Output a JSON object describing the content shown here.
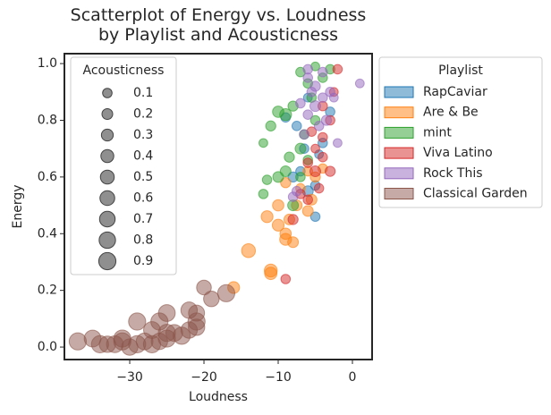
{
  "chart_data": {
    "type": "scatter",
    "title": "Scatterplot of Energy vs. Loudness\nby Playlist and Acousticness",
    "x_label": "Loudness",
    "y_label": "Energy",
    "xlim": [
      -38.8,
      2.65
    ],
    "ylim": [
      -0.044,
      1.035
    ],
    "xticks": [
      {
        "value": -30,
        "label": "−30"
      },
      {
        "value": -20,
        "label": "−20"
      },
      {
        "value": -10,
        "label": "−10"
      },
      0
    ],
    "yticks": [
      {
        "value": 0,
        "label": "0.0"
      },
      0.2,
      0.4,
      0.6,
      0.8,
      {
        "value": 1,
        "label": "1.0"
      }
    ],
    "legend_title": "Playlist",
    "size_legend": {
      "title": "Acousticness",
      "values": [
        0.1,
        0.2,
        0.3,
        0.4,
        0.5,
        0.6,
        0.7,
        0.8,
        0.9
      ]
    },
    "series": [
      {
        "name": "RapCaviar",
        "color": "#1f77b4",
        "x": [
          -9,
          -7,
          -6,
          -5,
          -4.5,
          -7.5,
          -5,
          -6,
          -4,
          -8,
          -3,
          -6.5
        ],
        "y": [
          0.81,
          0.62,
          0.55,
          0.57,
          0.68,
          0.78,
          0.46,
          0.88,
          0.72,
          0.6,
          0.83,
          0.7
        ],
        "size": [
          0.1,
          0.1,
          0.2,
          0.1,
          0.05,
          0.1,
          0.1,
          0.05,
          0.1,
          0.15,
          0.1,
          0.1
        ]
      },
      {
        "name": "Are & Be",
        "color": "#ff7f0e",
        "x": [
          -16,
          -14,
          -11,
          -11,
          -10,
          -11.5,
          -9,
          -8,
          -7.5,
          -6,
          -10,
          -8.5,
          -6,
          -5,
          -9,
          -7,
          -4,
          -5.5,
          -9
        ],
        "y": [
          0.21,
          0.34,
          0.27,
          0.26,
          0.43,
          0.46,
          0.4,
          0.37,
          0.5,
          0.48,
          0.5,
          0.45,
          0.62,
          0.6,
          0.38,
          0.56,
          0.63,
          0.52,
          0.58
        ],
        "size": [
          0.3,
          0.5,
          0.4,
          0.35,
          0.3,
          0.3,
          0.25,
          0.2,
          0.2,
          0.2,
          0.25,
          0.2,
          0.1,
          0.15,
          0.3,
          0.1,
          0.1,
          0.2,
          0.15
        ]
      },
      {
        "name": "mint",
        "color": "#2ca02c",
        "x": [
          -12,
          -11.5,
          -12,
          -10,
          -9,
          -8,
          -7,
          -6,
          -5,
          -3,
          -4,
          -7,
          -8.5,
          -6.5,
          -9,
          -5,
          -11,
          -7,
          -5.5,
          -8,
          -10,
          -6
        ],
        "y": [
          0.54,
          0.59,
          0.72,
          0.6,
          0.82,
          0.85,
          0.97,
          0.93,
          0.99,
          0.98,
          0.95,
          0.7,
          0.67,
          0.75,
          0.62,
          0.8,
          0.78,
          0.6,
          0.88,
          0.5,
          0.83,
          0.66
        ],
        "size": [
          0.1,
          0.1,
          0.05,
          0.2,
          0.3,
          0.15,
          0.1,
          0.1,
          0.05,
          0.1,
          0.1,
          0.2,
          0.15,
          0.1,
          0.2,
          0.1,
          0.15,
          0.1,
          0.1,
          0.2,
          0.25,
          0.1
        ]
      },
      {
        "name": "Viva Latino",
        "color": "#d62728",
        "x": [
          -9,
          -8,
          -6,
          -5,
          -4,
          -4,
          -3,
          -2,
          -5,
          -6,
          -3,
          -4.5,
          -7,
          -2.5,
          -4,
          -5.5
        ],
        "y": [
          0.24,
          0.45,
          0.52,
          0.62,
          0.67,
          0.74,
          0.8,
          0.98,
          0.7,
          0.65,
          0.62,
          0.56,
          0.54,
          0.9,
          0.85,
          0.76
        ],
        "size": [
          0.1,
          0.15,
          0.1,
          0.2,
          0.1,
          0.1,
          0.1,
          0.1,
          0.05,
          0.1,
          0.15,
          0.1,
          0.1,
          0.05,
          0.1,
          0.1
        ]
      },
      {
        "name": "Rock This",
        "color": "#9467bd",
        "x": [
          -6,
          -5,
          -4,
          -3,
          -5,
          -6,
          -4.5,
          -3.5,
          -7,
          -5.5,
          -6.5,
          -2.5,
          -7.5,
          -8,
          -4,
          1,
          -2,
          -6
        ],
        "y": [
          0.95,
          0.92,
          0.88,
          0.9,
          0.85,
          0.82,
          0.78,
          0.8,
          0.86,
          0.9,
          0.75,
          0.88,
          0.55,
          0.53,
          0.97,
          0.93,
          0.72,
          0.98
        ],
        "size": [
          0.1,
          0.15,
          0.1,
          0.1,
          0.2,
          0.1,
          0.1,
          0.15,
          0.1,
          0.1,
          0.1,
          0.05,
          0.1,
          0.1,
          0.1,
          0.05,
          0.05,
          0.1
        ]
      },
      {
        "name": "Classical Garden",
        "color": "#8c564b",
        "x": [
          -37,
          -35,
          -34,
          -33,
          -32,
          -31,
          -30,
          -29,
          -28,
          -27,
          -26,
          -25,
          -24,
          -22,
          -21,
          -20,
          -19,
          -17,
          -22,
          -21,
          -26,
          -29,
          -25,
          -23,
          -27,
          -31,
          -21,
          -25
        ],
        "y": [
          0.02,
          0.03,
          0.01,
          0.01,
          0.01,
          0.02,
          0.0,
          0.01,
          0.02,
          0.01,
          0.02,
          0.03,
          0.05,
          0.06,
          0.09,
          0.21,
          0.17,
          0.19,
          0.13,
          0.12,
          0.09,
          0.09,
          0.12,
          0.04,
          0.06,
          0.03,
          0.07,
          0.05
        ],
        "size": [
          0.9,
          0.85,
          0.9,
          0.8,
          0.85,
          0.9,
          0.8,
          0.9,
          0.85,
          0.9,
          0.8,
          0.9,
          0.85,
          0.8,
          0.9,
          0.6,
          0.7,
          0.9,
          0.8,
          0.75,
          0.9,
          0.9,
          0.85,
          0.9,
          0.85,
          0.9,
          0.8,
          0.9
        ]
      }
    ]
  }
}
